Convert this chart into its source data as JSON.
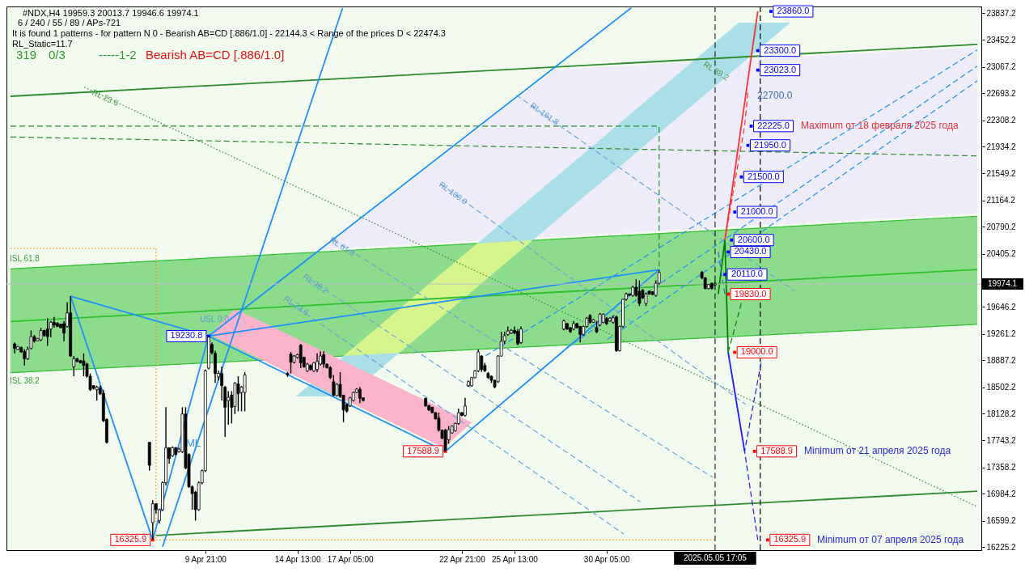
{
  "chart_data": {
    "type": "candlestick",
    "title": "#NDX,H4  19959.3 20013.7 19946.6 19974.1",
    "subtitle": "6 / 240 / 55 / 89 / APs-721",
    "x": [
      "2025-03-31T05:00",
      "2025-03-31T09:00",
      "2025-03-31T13:00",
      "2025-03-31T17:00",
      "2025-03-31T21:00",
      "2025-04-01T01:00",
      "2025-04-01T05:00",
      "2025-04-01T09:00",
      "2025-04-01T13:00",
      "2025-04-01T17:00",
      "2025-04-01T21:00",
      "2025-04-02T01:00",
      "2025-04-02T05:00",
      "2025-04-02T09:00",
      "2025-04-02T13:00",
      "2025-04-02T17:00",
      "2025-04-02T21:00",
      "2025-04-03T01:00",
      "2025-04-03T05:00",
      "2025-04-03T09:00",
      "2025-04-03T13:00",
      "2025-04-03T17:00",
      "2025-04-03T21:00",
      "2025-04-04T01:00",
      "2025-04-04T05:00",
      "2025-04-04T09:00",
      "2025-04-04T13:00",
      "2025-04-04T17:00",
      "2025-04-04T21:00",
      "2025-04-07T01:00",
      "2025-04-07T05:00",
      "2025-04-07T09:00",
      "2025-04-07T13:00",
      "2025-04-07T17:00",
      "2025-04-07T21:00",
      "2025-04-08T01:00",
      "2025-04-08T05:00",
      "2025-04-08T09:00",
      "2025-04-08T13:00",
      "2025-04-08T17:00",
      "2025-04-08T21:00",
      "2025-04-09T01:00",
      "2025-04-09T05:00",
      "2025-04-09T09:00",
      "2025-04-09T13:00",
      "2025-04-09T17:00",
      "2025-04-09T21:00",
      "2025-04-10T01:00",
      "2025-04-10T05:00",
      "2025-04-10T09:00",
      "2025-04-10T13:00",
      "2025-04-10T17:00",
      "2025-04-10T21:00",
      "2025-04-11T01:00",
      "2025-04-11T05:00",
      "2025-04-11T09:00",
      "2025-04-11T13:00",
      "2025-04-11T17:00",
      "2025-04-11T21:00",
      "2025-04-14T01:00",
      "2025-04-14T05:00",
      "2025-04-14T09:00",
      "2025-04-14T13:00",
      "2025-04-14T17:00",
      "2025-04-14T21:00",
      "2025-04-15T01:00",
      "2025-04-15T05:00",
      "2025-04-15T09:00",
      "2025-04-15T13:00",
      "2025-04-15T17:00",
      "2025-04-15T21:00",
      "2025-04-16T01:00",
      "2025-04-16T05:00",
      "2025-04-16T09:00",
      "2025-04-16T13:00",
      "2025-04-16T17:00",
      "2025-04-16T21:00",
      "2025-04-17T01:00",
      "2025-04-17T05:00",
      "2025-04-17T09:00",
      "2025-04-17T13:00",
      "2025-04-17T17:00",
      "2025-04-17T21:00",
      "2025-04-21T01:00",
      "2025-04-21T05:00",
      "2025-04-21T09:00",
      "2025-04-21T13:00",
      "2025-04-21T17:00",
      "2025-04-21T21:00",
      "2025-04-22T01:00",
      "2025-04-22T05:00",
      "2025-04-22T09:00",
      "2025-04-22T13:00",
      "2025-04-22T17:00",
      "2025-04-22T21:00",
      "2025-04-23T01:00",
      "2025-04-23T05:00",
      "2025-04-23T09:00",
      "2025-04-23T13:00",
      "2025-04-23T17:00",
      "2025-04-23T21:00",
      "2025-04-24T01:00",
      "2025-04-24T05:00",
      "2025-04-24T09:00",
      "2025-04-24T13:00",
      "2025-04-24T17:00",
      "2025-04-24T21:00",
      "2025-04-25T01:00",
      "2025-04-25T05:00",
      "2025-04-25T09:00",
      "2025-04-25T13:00",
      "2025-04-25T17:00",
      "2025-04-25T21:00",
      "2025-04-28T01:00",
      "2025-04-28T05:00",
      "2025-04-28T09:00",
      "2025-04-28T13:00",
      "2025-04-28T17:00",
      "2025-04-28T21:00",
      "2025-04-29T01:00",
      "2025-04-29T05:00",
      "2025-04-29T09:00",
      "2025-04-29T13:00",
      "2025-04-29T17:00",
      "2025-04-29T21:00",
      "2025-04-30T01:00",
      "2025-04-30T05:00",
      "2025-04-30T09:00",
      "2025-04-30T13:00",
      "2025-04-30T17:00",
      "2025-04-30T21:00",
      "2025-05-01T01:00",
      "2025-05-01T05:00",
      "2025-05-01T09:00",
      "2025-05-01T13:00",
      "2025-05-01T17:00",
      "2025-05-01T21:00",
      "2025-05-02T01:00",
      "2025-05-02T05:00",
      "2025-05-02T09:00",
      "2025-05-02T13:00",
      "2025-05-02T17:00",
      "2025-05-02T21:00",
      "2025-05-05T01:00",
      "2025-05-05T05:00",
      "2025-05-05T09:00",
      "2025-05-05T13:00",
      "2025-05-05T17:00"
    ],
    "ohlc": [
      [
        19120,
        19140,
        18986,
        19055
      ],
      [
        19043,
        19090,
        19035,
        19082
      ],
      [
        19070,
        19080,
        18995,
        19005
      ],
      [
        19013,
        19043,
        18813,
        18909
      ],
      [
        18909,
        19082,
        18890,
        19043
      ],
      [
        19055,
        19312,
        19043,
        19224
      ],
      [
        19224,
        19247,
        19140,
        19159
      ],
      [
        19166,
        19205,
        19160,
        19197
      ],
      [
        19178,
        19351,
        19159,
        19312
      ],
      [
        19312,
        19320,
        19225,
        19236
      ],
      [
        19332,
        19486,
        19093,
        19224
      ],
      [
        19332,
        19447,
        19216,
        19428
      ],
      [
        19428,
        19505,
        19351,
        19389
      ],
      [
        19416,
        19430,
        19360,
        19370
      ],
      [
        19401,
        19410,
        19340,
        19351
      ],
      [
        19409,
        19447,
        19159,
        19274
      ],
      [
        19370,
        19716,
        19351,
        19562
      ],
      [
        19562,
        19801,
        18940,
        18947
      ],
      [
        18794,
        18947,
        18659,
        18909
      ],
      [
        18909,
        18920,
        18860,
        18870
      ],
      [
        18882,
        18890,
        18840,
        18851
      ],
      [
        18878,
        18986,
        18659,
        18813
      ],
      [
        18832,
        18851,
        18640,
        18659
      ],
      [
        18659,
        18697,
        18448,
        18467
      ],
      [
        18525,
        18530,
        18470,
        18486
      ],
      [
        18467,
        18525,
        18313,
        18505
      ],
      [
        18494,
        18525,
        18390,
        18409
      ],
      [
        18417,
        18467,
        18005,
        18025
      ],
      [
        18044,
        18060,
        17700,
        17717
      ],
      [
        17717,
        17717,
        17314,
        17390
      ],
      [
        16572,
        16891,
        16325.9,
        16841
      ],
      [
        16841,
        16850,
        16698,
        16756
      ],
      [
        16602,
        16770,
        16560,
        16756
      ],
      [
        16756,
        17160,
        16737,
        17141
      ],
      [
        17141,
        18217,
        17102,
        17640
      ],
      [
        17640,
        17645,
        17410,
        17486
      ],
      [
        17525,
        17660,
        17510,
        17640
      ],
      [
        17640,
        17650,
        17530,
        17544
      ],
      [
        17583,
        17640,
        17570,
        17621
      ],
      [
        17583,
        18217,
        17564,
        18121
      ],
      [
        18121,
        18217,
        17333,
        17352
      ],
      [
        17544,
        17560,
        17070,
        17083
      ],
      [
        17083,
        17102,
        16757,
        16987
      ],
      [
        17006,
        17025,
        16602,
        16756
      ],
      [
        16756,
        17160,
        16740,
        17141
      ],
      [
        17141,
        17330,
        17120,
        17314
      ],
      [
        17314,
        18755,
        17294,
        18736
      ],
      [
        18774,
        19230.8,
        18755,
        19216
      ],
      [
        19113,
        19140,
        18967,
        18997
      ],
      [
        18986,
        19024,
        18563,
        18697
      ],
      [
        18650,
        18740,
        18600,
        18700
      ],
      [
        18697,
        18794,
        18313,
        18524
      ],
      [
        18505,
        18520,
        17794,
        18217
      ],
      [
        18313,
        18447,
        17967,
        18359
      ],
      [
        18390,
        18447,
        17986,
        18217
      ],
      [
        18228,
        18574,
        18121,
        18563
      ],
      [
        18551,
        18659,
        18159,
        18409
      ],
      [
        18428,
        18520,
        18159,
        18505
      ],
      [
        18428,
        18717,
        18159,
        18678
      ],
      [
        18697,
        18720,
        18650,
        18678
      ],
      [
        18974,
        19005,
        18697,
        18859
      ],
      [
        18859,
        18960,
        18840,
        18947
      ],
      [
        18928,
        18980,
        18910,
        18966
      ],
      [
        19101,
        19120,
        18774,
        18851
      ],
      [
        18928,
        18940,
        18780,
        18794
      ],
      [
        18736,
        18850,
        18720,
        18832
      ],
      [
        18813,
        18830,
        18740,
        18755
      ],
      [
        18736,
        18860,
        18720,
        18851
      ],
      [
        18755,
        18986,
        18717,
        18870
      ],
      [
        18832,
        19013,
        18813,
        18947
      ],
      [
        18966,
        19013,
        18782,
        18832
      ],
      [
        18832,
        18840,
        18770,
        18782
      ],
      [
        18782,
        18800,
        18620,
        18640
      ],
      [
        18582,
        18678,
        18371,
        18390
      ],
      [
        18382,
        18560,
        18370,
        18544
      ],
      [
        18544,
        18717,
        18351,
        18371
      ],
      [
        18390,
        18390,
        18005,
        18179
      ],
      [
        18255,
        18270,
        18140,
        18159
      ],
      [
        18236,
        18365,
        18220,
        18351
      ],
      [
        18313,
        18440,
        18300,
        18428
      ],
      [
        18428,
        18490,
        18420,
        18474
      ],
      [
        18474,
        18505,
        18275,
        18344
      ],
      [
        18351,
        18360,
        18300,
        18313
      ],
      [
        18344,
        18350,
        18225,
        18236
      ],
      [
        18244,
        18250,
        18165,
        18179
      ],
      [
        18217,
        18225,
        18130,
        18140
      ],
      [
        18140,
        18150,
        18040,
        18052
      ],
      [
        18063,
        18140,
        17871,
        17890
      ],
      [
        17890,
        17900,
        17760,
        17775
      ],
      [
        17890,
        17909,
        17588.9,
        17613
      ],
      [
        17756,
        17948,
        17698,
        17898
      ],
      [
        17852,
        17960,
        17840,
        17948
      ],
      [
        17883,
        17995,
        17870,
        17986
      ],
      [
        17986,
        18198,
        17967,
        18140
      ],
      [
        18140,
        18150,
        18090,
        18102
      ],
      [
        18102,
        18351,
        18082,
        18236
      ],
      [
        18524,
        18600,
        18510,
        18582
      ],
      [
        18524,
        18650,
        18510,
        18640
      ],
      [
        18640,
        18750,
        18630,
        18736
      ],
      [
        18736,
        19040,
        18717,
        19005
      ],
      [
        18947,
        18960,
        18720,
        18755
      ],
      [
        18813,
        18850,
        18720,
        18736
      ],
      [
        18698,
        18720,
        18620,
        18640
      ],
      [
        18659,
        18670,
        18563,
        18601
      ],
      [
        18601,
        18610,
        18486,
        18505
      ],
      [
        18582,
        18960,
        18563,
        18947
      ],
      [
        18947,
        19293,
        18940,
        19159
      ],
      [
        19159,
        19293,
        19120,
        19236
      ],
      [
        19255,
        19370,
        19236,
        19305
      ],
      [
        19274,
        19330,
        19260,
        19313
      ],
      [
        19313,
        19370,
        19255,
        19274
      ],
      [
        19301,
        19332,
        19101,
        19120
      ],
      [
        19139,
        19370,
        19120,
        19332
      ],
      [
        19332,
        19466,
        19313,
        19447
      ],
      [
        19409,
        19420,
        19320,
        19332
      ],
      [
        19351,
        19360,
        19280,
        19293
      ],
      [
        19332,
        19447,
        19313,
        19409
      ],
      [
        19409,
        19420,
        19340,
        19351
      ],
      [
        19370,
        19370,
        19140,
        19255
      ],
      [
        19255,
        19380,
        19240,
        19370
      ],
      [
        19370,
        19505,
        19351,
        19486
      ],
      [
        19524,
        19543,
        19409,
        19428
      ],
      [
        19428,
        19475,
        19420,
        19466
      ],
      [
        19351,
        19447,
        19274,
        19293
      ],
      [
        19389,
        19562,
        19370,
        19543
      ],
      [
        19428,
        19555,
        19415,
        19543
      ],
      [
        19486,
        19505,
        19389,
        19409
      ],
      [
        19447,
        19495,
        19435,
        19486
      ],
      [
        19428,
        19524,
        19408,
        19493
      ],
      [
        19505,
        19524,
        19005,
        19024
      ],
      [
        19024,
        19380,
        19010,
        19370
      ],
      [
        19370,
        19762,
        19351,
        19755
      ],
      [
        19755,
        19851,
        19736,
        19832
      ],
      [
        19832,
        19840,
        19800,
        19812
      ],
      [
        19812,
        19947,
        19793,
        19928
      ],
      [
        19928,
        20043,
        19793,
        19812
      ],
      [
        19870,
        20024,
        19659,
        19697
      ],
      [
        19889,
        19900,
        19760,
        19774
      ],
      [
        19697,
        19851,
        19659,
        19832
      ],
      [
        19870,
        19880,
        19820,
        19832
      ],
      [
        19862,
        19870,
        19815,
        19824
      ],
      [
        19812,
        20024,
        19793,
        19985
      ],
      [
        19985,
        20177,
        19966,
        20139
      ],
      [
        20139,
        20158,
        20043,
        20062
      ],
      [
        20062,
        20070,
        19900,
        19908
      ],
      [
        19908,
        19975,
        19900,
        19966
      ],
      [
        19985,
        19995,
        19895,
        19908
      ],
      [
        19959.3,
        20013.7,
        19946.6,
        19974.1
      ]
    ],
    "series": [
      {
        "type": "line",
        "color": "#2fbf2f",
        "x": [
          "2025-03-31T00:00",
          "2025-05-19T00:00"
        ],
        "values": [
          19440,
          20180
        ],
        "lower": [
          18710,
          19400
        ],
        "upper": [
          20190,
          20940
        ]
      },
      {
        "type": "line",
        "color": "#efecf9",
        "x": [
          "2025-04-15T20:00",
          "2025-04-27T14:24",
          "2025-05-19T00:00"
        ],
        "values": [
          null,
          null,
          null
        ],
        "lower": [
          20470,
          20650,
          20980
        ],
        "upper": [
          20470,
          23030,
          23350
        ]
      },
      {
        "type": "line",
        "color": "#a8dfe8",
        "x": [
          "2025-04-14T11:00",
          "2025-04-17T02:00",
          "2025-05-06T21:48",
          "2025-05-09T12:48"
        ],
        "values": [
          null,
          null,
          null,
          null
        ],
        "lower": [
          18370,
          18370,
          23080,
          23700
        ],
        "upper": [
          18370,
          18990,
          23700,
          23700
        ]
      },
      {
        "type": "line",
        "color": "#d6f58c",
        "x": [
          "2025-04-16T21:24",
          "2025-04-19T16:24",
          "2025-04-23T15:36",
          "2025-04-26T10:54"
        ],
        "values": [
          null,
          null,
          null,
          null
        ],
        "lower": [
          18950,
          18990,
          19930,
          20600
        ],
        "upper": [
          18950,
          19610,
          20550,
          20600
        ]
      },
      {
        "type": "line",
        "color": "#f9b3cb",
        "x": [
          "2025-04-10T03:00",
          "2025-04-11T09:00",
          "2025-04-21T23:00",
          "2025-04-23T09:00"
        ],
        "values": [
          null,
          null,
          null,
          null
        ],
        "lower": [
          19250,
          19080,
          17640,
          18000
        ],
        "upper": [
          19250,
          19620,
          18190,
          18000
        ]
      },
      {
        "type": "line",
        "color": "#2e8b2e",
        "x": [
          "2025-03-31T00:00",
          "2025-05-19T00:00"
        ],
        "values": [
          22650,
          23390
        ]
      },
      {
        "type": "line",
        "color": "#2e8b2e",
        "x": [
          "2025-04-07T09:00",
          "2025-05-19T00:00"
        ],
        "values": [
          16390,
          17020
        ]
      },
      {
        "type": "line",
        "color": "#2e8b2e",
        "line_style": "dashed",
        "x": [
          "2025-03-31T00:00",
          "2025-05-19T00:00"
        ],
        "values": [
          22070,
          21800
        ]
      },
      {
        "type": "line",
        "color": "#2e8b2e",
        "line_style": "dashed",
        "x": [
          "2025-03-31T00:00",
          "2025-05-02T21:00",
          "2025-05-02T21:00"
        ],
        "values": [
          22225,
          22225,
          20177
        ]
      },
      {
        "type": "line",
        "color": "#2e8b2e",
        "line_style": "dotted",
        "x": [
          "2025-04-03T18:00",
          "2025-05-18T22:00"
        ],
        "values": [
          22780,
          16810
        ]
      },
      {
        "type": "line",
        "color": "#ff8c00",
        "line_style": "dotted",
        "x": [
          "2025-03-31T00:00",
          "2025-04-07T09:00",
          "2025-04-07T09:00",
          "2025-05-05T17:00"
        ],
        "values": [
          20480,
          20480,
          16325.9,
          16325.9
        ]
      },
      {
        "type": "line",
        "color": "#000000",
        "line_style": "dashed",
        "x": [
          "2025-05-08T00:00",
          "2025-05-08T00:00"
        ],
        "values": [
          16180,
          23930
        ]
      },
      {
        "type": "line",
        "color": "#1e90ff",
        "x": [
          "2025-04-07T17:00",
          "2025-04-16T20:00"
        ],
        "values": [
          16230,
          23910
        ]
      },
      {
        "type": "line",
        "color": "#1e90ff",
        "x": [
          "2025-04-10T01:00",
          "2025-05-01T11:00"
        ],
        "values": [
          19230.8,
          23910
        ]
      },
      {
        "type": "line",
        "color": "#1e90ff",
        "line_style": "dashed",
        "x": [
          "2025-04-24T02:00",
          "2025-05-19T00:00"
        ],
        "values": [
          18950,
          23310
        ]
      },
      {
        "type": "line",
        "color": "#1e90ff",
        "line_style": "dashed",
        "x": [
          "2025-04-28T04:00",
          "2025-05-19T00:00"
        ],
        "values": [
          19060,
          23080
        ]
      },
      {
        "type": "line",
        "color": "#1e90ff",
        "line_style": "dashed",
        "x": [
          "2025-04-30T06:00",
          "2025-05-19T00:00"
        ],
        "values": [
          19180,
          22870
        ]
      },
      {
        "type": "line",
        "color": "#6aa6e0",
        "line_style": "dashed",
        "x": [
          "2025-04-25T15:00",
          "2025-05-09T18:00"
        ],
        "values": [
          22670,
          19870
        ]
      },
      {
        "type": "line",
        "color": "#6aa6e0",
        "line_style": "dashed",
        "x": [
          "2025-04-21T19:00",
          "2025-05-07T06:00"
        ],
        "values": [
          21400,
          18260
        ]
      },
      {
        "type": "line",
        "color": "#6aa6e0",
        "line_style": "dashed",
        "x": [
          "2025-04-16T09:00",
          "2025-05-05T14:00"
        ],
        "values": [
          20600,
          17220
        ]
      },
      {
        "type": "line",
        "color": "#6aa6e0",
        "line_style": "dashed",
        "x": [
          "2025-04-15T04:00",
          "2025-05-01T22:00"
        ],
        "values": [
          20040,
          16870
        ]
      },
      {
        "type": "line",
        "color": "#6aa6e0",
        "line_style": "dashed",
        "x": [
          "2025-04-14T05:00",
          "2025-05-01T02:00"
        ],
        "values": [
          19700,
          16410
        ]
      },
      {
        "type": "line",
        "color": "#1e90ff",
        "x": [
          "2025-04-03T01:00",
          "2025-04-07T05:00",
          "2025-04-10T01:00",
          "2025-04-22T01:00",
          "2025-05-02T21:00"
        ],
        "values": [
          19801,
          16325.9,
          19230.8,
          17588.9,
          20177
        ]
      },
      {
        "type": "line",
        "color": "#1e90ff",
        "x": [
          "2025-04-03T01:00",
          "2025-04-10T01:00"
        ],
        "values": [
          19801,
          19230.8
        ]
      },
      {
        "type": "line",
        "color": "#1e90ff",
        "x": [
          "2025-04-10T01:00",
          "2025-05-02T21:00"
        ],
        "values": [
          19230.8,
          20177
        ]
      },
      {
        "type": "line",
        "color": "#008000",
        "x": [
          "2025-05-05T21:00",
          "2025-05-06T05:00",
          "2025-05-06T09:00"
        ],
        "values": [
          19830,
          20600,
          19000
        ]
      },
      {
        "type": "line",
        "color": "#008000",
        "line_style": "dashed",
        "x": [
          "2025-05-06T09:00",
          "2025-05-07T01:00"
        ],
        "values": [
          19000,
          19700
        ]
      },
      {
        "type": "line",
        "color": "#ff3030",
        "x": [
          "2025-05-06T05:00",
          "2025-05-07T21:00"
        ],
        "values": [
          20600,
          23860
        ]
      },
      {
        "type": "line",
        "color": "#ff3030",
        "line_style": "dashed",
        "x": [
          "2025-05-06T05:00",
          "2025-05-07T05:00",
          "2025-05-07T09:00"
        ],
        "values": [
          20600,
          22225,
          22700
        ]
      },
      {
        "type": "line",
        "color": "#3a5fe0",
        "line_style": "dashed",
        "x": [
          "2025-05-05T21:00",
          "2025-05-06T01:00",
          "2025-05-06T05:00"
        ],
        "values": [
          20430,
          20110,
          19830
        ]
      },
      {
        "type": "line",
        "color": "#1a1aff",
        "x": [
          "2025-05-06T09:00",
          "2025-05-07T05:00"
        ],
        "values": [
          19000,
          17588.9
        ]
      },
      {
        "type": "line",
        "color": "#1a1aff",
        "line_style": "dashed",
        "x": [
          "2025-05-08T01:00",
          "2025-05-07T05:00",
          "2025-05-07T21:00"
        ],
        "values": [
          18850,
          17588.9,
          16325.9
        ]
      },
      {
        "type": "scatter",
        "color": "#0000ff",
        "marker": "square",
        "x": [
          "2025-04-10T01:00",
          "2025-05-06T05:00",
          "2025-05-06T09:00",
          "2025-05-06T13:00",
          "2025-05-06T17:00",
          "2025-05-07T01:00",
          "2025-05-07T09:00",
          "2025-05-07T13:00",
          "2025-05-07T21:00",
          "2025-05-07T21:00",
          "2025-05-08T13:00"
        ],
        "values": [
          19230.8,
          20110.0,
          20430.0,
          20600.0,
          21000.0,
          21500.0,
          21950.0,
          22225.0,
          23023.0,
          23300.0,
          23860.0
        ],
        "value_labels": [
          "19230.8",
          "20110.0",
          "20430.0",
          "20600.0",
          "21000.0",
          "21500.0",
          "21950.0",
          "22225.0",
          "23023.0",
          "23300.0",
          "23860.0"
        ]
      },
      {
        "type": "scatter",
        "color": "#ff0000",
        "marker": "square",
        "x": [
          "2025-04-07T05:00",
          "2025-04-22T01:00",
          "2025-05-06T09:00",
          "2025-05-06T17:00",
          "2025-05-07T17:00",
          "2025-05-08T09:00"
        ],
        "values": [
          16325.9,
          17588.9,
          19830.0,
          19000.0,
          17588.9,
          16325.9
        ],
        "value_labels": [
          "16325.9",
          "17588.9",
          "19830.0",
          "19000.0",
          "17588.9",
          "16325.9"
        ]
      }
    ],
    "xlim": [
      "2025-03-31T00:00",
      "2025-05-19T00:00"
    ],
    "ylim": [
      16180,
      23930
    ],
    "xticks": [
      {
        "value": "2025-04-09T21:00",
        "label": "9 Apr 21:00"
      },
      {
        "value": "2025-04-14T13:00",
        "label": "14 Apr 13:00"
      },
      {
        "value": "2025-04-17T05:00",
        "label": "17 Apr 05:00"
      },
      {
        "value": "2025-04-22T21:00",
        "label": "22 Apr 21:00"
      },
      {
        "value": "2025-04-25T13:00",
        "label": "25 Apr 13:00"
      },
      {
        "value": "2025-04-30T05:00",
        "label": "30 Apr 05:00"
      }
    ],
    "yticks": [
      23837.2,
      23452.2,
      23067.2,
      22693.2,
      22308.2,
      21934.2,
      21549.2,
      21164.2,
      20790.2,
      20405.2,
      {
        "value": 20020.2,
        "label": null
      },
      19646.2,
      19261.2,
      18887.2,
      18502.2,
      18128.2,
      17743.2,
      17358.2,
      16984.2,
      16599.2,
      16225.2
    ],
    "ref_lines": [
      {
        "axis": "x",
        "value": "2025-05-05T17:05",
        "label": "2025.05.05 17:05",
        "color": "#000000",
        "line_style": "dashed"
      },
      {
        "axis": "y",
        "value": 19974.1,
        "label": "19974.1",
        "color": "#c0c0c0"
      }
    ],
    "annotations": [
      "It is found 1 patterns  -  for pattern N 0 - Bearish AB=CD [.886/1.0] - 22144.3 < Range of the prices D < 22474.3",
      "RL_Static=11.7",
      "319",
      "0/3",
      "-----1-2",
      "Bearish AB=CD [.886/1.0]",
      "RL 23.6",
      "RL 161.8",
      "RL 100.0",
      "RL 61.8",
      "RL 38.2",
      "RL 23.6",
      "USL 0.0",
      "ISL 61.8",
      "ISL 38.2",
      "ML",
      "RL 38.2",
      "22700.0",
      "Maximum от 18 февраля 2025 года",
      "Minimum от 21 апреля 2025 года",
      "Minimum от 07 апреля 2025 года"
    ]
  }
}
